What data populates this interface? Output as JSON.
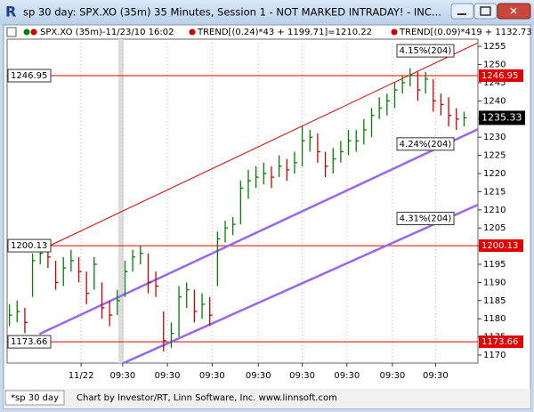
{
  "chart_data": {
    "type": "ohlc",
    "window_title": "sp 30 day: SPX.XO (35m) 35 Minutes, Session 1 - NOT MARKED INTRADAY! - INC...",
    "legend": [
      "SPX.XO (35m)-11/23/10 16:02",
      "TREND[(0.24)*43 + 1199.71]=1210.22",
      "TREND[(0.09)*419 + 1132.73"
    ],
    "footer_tab": "*sp 30 day",
    "footer": "Chart by Investor/RT, Linn Software, Inc. www.linnsoft.com",
    "up_color": "#008000",
    "down_color": "#cc0000",
    "close": [
      1181,
      1182,
      1179,
      1196,
      1198,
      1197,
      1190,
      1194,
      1196,
      1193,
      1187,
      1195,
      1183,
      1181,
      1185,
      1193,
      1197,
      1198,
      1190,
      1189,
      1174,
      1176,
      1186,
      1188,
      1182,
      1184,
      1181,
      1202,
      1205,
      1206,
      1216,
      1218,
      1219,
      1220,
      1219,
      1222,
      1221,
      1223,
      1229,
      1230,
      1226,
      1222,
      1224,
      1226,
      1229,
      1229,
      1232,
      1236,
      1238,
      1240,
      1243,
      1245,
      1247,
      1243,
      1246,
      1240,
      1239,
      1236,
      1235,
      1235.33
    ],
    "high": [
      1184,
      1185,
      1183,
      1198,
      1200,
      1199,
      1196,
      1197,
      1199,
      1197,
      1193,
      1197,
      1190,
      1185,
      1188,
      1196,
      1199,
      1200,
      1198,
      1193,
      1182,
      1179,
      1189,
      1190,
      1188,
      1187,
      1186,
      1204,
      1207,
      1208,
      1218,
      1221,
      1222,
      1223,
      1222,
      1225,
      1224,
      1226,
      1233,
      1232,
      1231,
      1226,
      1227,
      1229,
      1232,
      1232,
      1235,
      1238,
      1241,
      1242,
      1245,
      1247,
      1249,
      1248,
      1248,
      1246,
      1242,
      1241,
      1238,
      1237
    ],
    "low": [
      1178,
      1179,
      1176,
      1186,
      1195,
      1194,
      1188,
      1189,
      1193,
      1190,
      1184,
      1188,
      1180,
      1178,
      1181,
      1186,
      1193,
      1195,
      1187,
      1186,
      1171,
      1172,
      1175,
      1183,
      1179,
      1180,
      1178,
      1189,
      1201,
      1203,
      1206,
      1213,
      1216,
      1217,
      1216,
      1219,
      1218,
      1220,
      1222,
      1226,
      1223,
      1219,
      1220,
      1223,
      1225,
      1226,
      1228,
      1230,
      1235,
      1236,
      1238,
      1242,
      1244,
      1240,
      1242,
      1237,
      1236,
      1233,
      1232,
      1233
    ],
    "xlim": [
      -0.3,
      60.8
    ],
    "xticks": [
      {
        "value": 9.3,
        "label": "11/22"
      },
      {
        "value": 14.7,
        "label": "09:30"
      },
      {
        "value": 20.5,
        "label": "09:30"
      },
      {
        "value": 26.3,
        "label": "09:30"
      },
      {
        "value": 32.3,
        "label": "09:30"
      },
      {
        "value": 38,
        "label": "09:30"
      },
      {
        "value": 43.8,
        "label": "09:30"
      },
      {
        "value": 49.7,
        "label": "09:30"
      },
      {
        "value": 55.3,
        "label": "09:30"
      }
    ],
    "ylim": [
      1167.8,
      1257
    ],
    "yticks": [
      1170,
      1175,
      1180,
      1185,
      1190,
      1195,
      1200,
      1205,
      1210,
      1215,
      1220,
      1225,
      1230,
      1235,
      1240,
      1245,
      1250,
      1255
    ],
    "grid": true,
    "hlines": [
      {
        "value": 1246.95,
        "color": "#e00000"
      },
      {
        "value": 1200.13,
        "color": "#e00000"
      },
      {
        "value": 1173.66,
        "color": "#e00000"
      }
    ],
    "last_color": "#000000",
    "trendlines": [
      {
        "label": "4.15%(204)",
        "color": "#e00000",
        "x": [
          5.0,
          60.8
        ],
        "y": [
          1199.9,
          1256
        ]
      },
      {
        "label": "4.24%(204)",
        "color": "#9966ee",
        "x": [
          3.9,
          60.8
        ],
        "y": [
          1175.8,
          1232.2
        ]
      },
      {
        "label": "4.31%(204)",
        "color": "#9966ee",
        "x": [
          14.7,
          60.8
        ],
        "y": [
          1167.7,
          1211.4
        ]
      }
    ]
  }
}
